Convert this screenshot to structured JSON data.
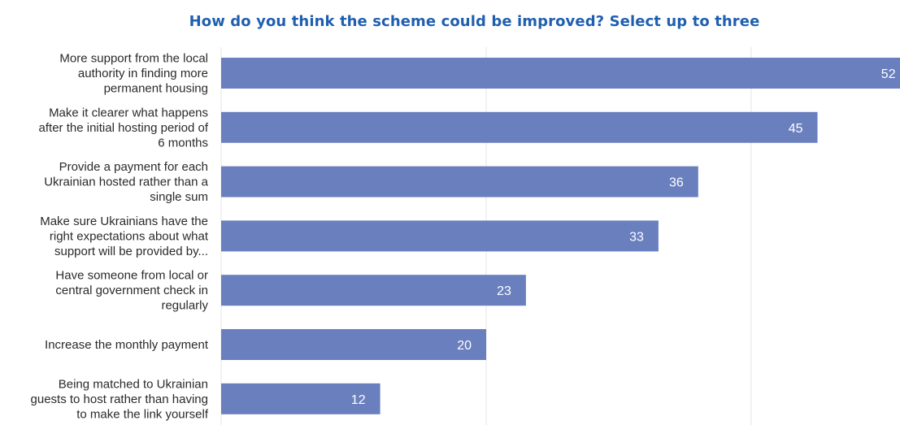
{
  "chart_data": {
    "type": "bar",
    "orientation": "horizontal",
    "title": "How do you think the scheme could be improved? Select up to three",
    "categories": [
      [
        "More support from the local",
        "authority in finding more",
        "permanent housing"
      ],
      [
        "Make it clearer what happens",
        "after the initial hosting period of",
        "6 months"
      ],
      [
        "Provide a payment for each",
        "Ukrainian hosted rather than a",
        "single sum"
      ],
      [
        "Make sure Ukrainians have the",
        "right expectations about what",
        "support will be provided by..."
      ],
      [
        "Have someone from local or",
        "central government check in",
        "regularly"
      ],
      [
        "Increase the monthly payment"
      ],
      [
        "Being matched to Ukrainian",
        "guests to host rather than having",
        "to make the link yourself"
      ]
    ],
    "values": [
      52,
      45,
      36,
      33,
      23,
      20,
      12
    ],
    "value_labels": [
      "52",
      "45",
      "36",
      "33",
      "23",
      "20",
      "12"
    ],
    "xlim": [
      0,
      50
    ],
    "grid": true,
    "legend": "none",
    "bar_color": "#6a7fbd",
    "grid_color": "#e6e6e6"
  }
}
